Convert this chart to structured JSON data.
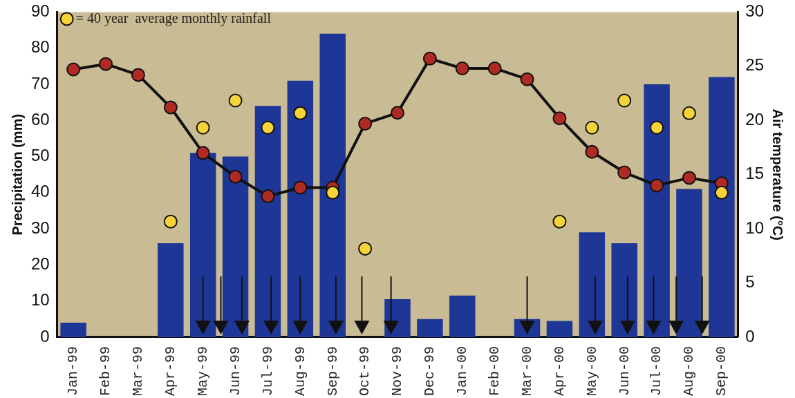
{
  "chart_data": {
    "type": "bar",
    "xlabel": null,
    "ylabel": "Precipitation (mm)",
    "y2label": "Air temperature (°C)",
    "categories": [
      "Jan-99",
      "Feb-99",
      "Mar-99",
      "Apr-99",
      "May-99",
      "Jun-99",
      "Jul-99",
      "Aug-99",
      "Sep-99",
      "Oct-99",
      "Nov-99",
      "Dec-99",
      "Jan-00",
      "Feb-00",
      "Mar-00",
      "Apr-00",
      "May-00",
      "Jun-00",
      "Jul-00",
      "Aug-00",
      "Sep-00"
    ],
    "series": [
      {
        "color": "#1e3797",
        "values": [
          4,
          0,
          0,
          26,
          51,
          50,
          64,
          71,
          84,
          0,
          10.5,
          5,
          11.5,
          0,
          5,
          4.5,
          29,
          26,
          70,
          41,
          72
        ]
      },
      {
        "type": "line",
        "axis": "y2",
        "color": "#b02a24",
        "values": [
          24.7,
          25.2,
          24.2,
          21.2,
          17,
          14.8,
          13,
          13.8,
          13.8,
          19.7,
          20.7,
          25.7,
          24.8,
          24.8,
          23.8,
          20.2,
          17.1,
          15.2,
          14,
          14.7,
          14.2
        ]
      },
      {
        "type": "scatter",
        "name": "= 40 year  average monthly rainfall",
        "color": "#f7d33a",
        "values": [
          null,
          null,
          null,
          32,
          58,
          65.5,
          58,
          62,
          40,
          24.5,
          null,
          null,
          null,
          null,
          null,
          32,
          58,
          65.5,
          58,
          62,
          40
        ]
      }
    ],
    "ylim": [
      0,
      90
    ],
    "yticks": [
      0,
      10,
      20,
      30,
      40,
      50,
      60,
      70,
      80,
      90
    ],
    "y2lim": [
      0,
      30
    ],
    "y2ticks": [
      0,
      5,
      10,
      15,
      20,
      25,
      30
    ],
    "marker": "circle",
    "line_style": "solid",
    "grid": false,
    "legend": "top left"
  }
}
